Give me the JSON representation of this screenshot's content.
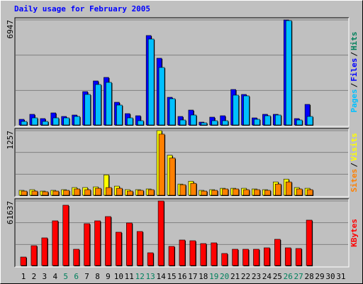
{
  "chart_data": [
    {
      "type": "bar",
      "title": "Daily usage for February 2005",
      "ylim": [
        0,
        6947
      ],
      "yticks": [
        6947
      ],
      "legend_separator": "/",
      "extra_legend": {
        "name": "Hits",
        "color": "#00805c"
      },
      "series": [
        {
          "name": "Files",
          "color": "#0000ff",
          "values": [
            373,
            700,
            420,
            793,
            560,
            653,
            2191,
            2891,
            3124,
            1492,
            746,
            606,
            5875,
            4383,
            1818,
            560,
            979,
            186,
            513,
            606,
            2331,
            2005,
            466,
            700,
            700,
            6900,
            420,
            1352,
            null,
            null,
            null
          ]
        },
        {
          "name": "Pages",
          "color": "#00c0ff",
          "values": [
            233,
            466,
            233,
            466,
            466,
            560,
            2005,
            2658,
            2797,
            1305,
            466,
            280,
            5642,
            3776,
            1725,
            326,
            653,
            140,
            280,
            280,
            1958,
            1911,
            373,
            606,
            653,
            6853,
            326,
            560,
            null,
            null,
            null
          ]
        }
      ]
    },
    {
      "type": "bar",
      "ylim": [
        0,
        1257
      ],
      "yticks": [
        1257
      ],
      "legend_separator": "/",
      "series": [
        {
          "name": "Visits",
          "color": "#ffff00",
          "values": [
            95,
            108,
            81,
            95,
            108,
            149,
            149,
            162,
            392,
            176,
            108,
            108,
            122,
            1244,
            770,
            216,
            270,
            95,
            108,
            135,
            135,
            135,
            122,
            108,
            257,
            311,
            149,
            135,
            null,
            null,
            null
          ]
        },
        {
          "name": "Sites",
          "color": "#ff8000",
          "values": [
            81,
            81,
            68,
            81,
            95,
            122,
            108,
            135,
            149,
            135,
            81,
            95,
            108,
            1176,
            716,
            203,
            230,
            81,
            95,
            122,
            122,
            108,
            108,
            95,
            216,
            257,
            122,
            108,
            null,
            null,
            null
          ]
        }
      ]
    },
    {
      "type": "bar",
      "ylim": [
        0,
        61637
      ],
      "yticks": [
        61637
      ],
      "legend_separator": "/",
      "categories": [
        "1",
        "2",
        "3",
        "4",
        "5",
        "6",
        "7",
        "8",
        "9",
        "10",
        "11",
        "12",
        "13",
        "14",
        "15",
        "16",
        "17",
        "18",
        "19",
        "20",
        "21",
        "22",
        "23",
        "24",
        "25",
        "26",
        "27",
        "28",
        "29",
        "30",
        "31"
      ],
      "category_colors": [
        "#000000",
        "#000000",
        "#000000",
        "#000000",
        "#00805c",
        "#00805c",
        "#000000",
        "#000000",
        "#000000",
        "#000000",
        "#000000",
        "#00805c",
        "#00805c",
        "#000000",
        "#000000",
        "#000000",
        "#000000",
        "#000000",
        "#00805c",
        "#00805c",
        "#000000",
        "#000000",
        "#000000",
        "#000000",
        "#000000",
        "#00805c",
        "#00805c",
        "#000000",
        "#000000",
        "#000000",
        "#000000"
      ],
      "series": [
        {
          "name": "KBytes",
          "color": "#ff0000",
          "values": [
            8040,
            18760,
            26130,
            42210,
            56950,
            15410,
            39530,
            42210,
            46230,
            31490,
            40200,
            32160,
            12060,
            60970,
            18090,
            24120,
            23450,
            20770,
            21440,
            11390,
            15410,
            15410,
            15410,
            16750,
            24790,
            16750,
            16080,
            42880,
            null,
            null,
            null
          ]
        }
      ]
    }
  ]
}
